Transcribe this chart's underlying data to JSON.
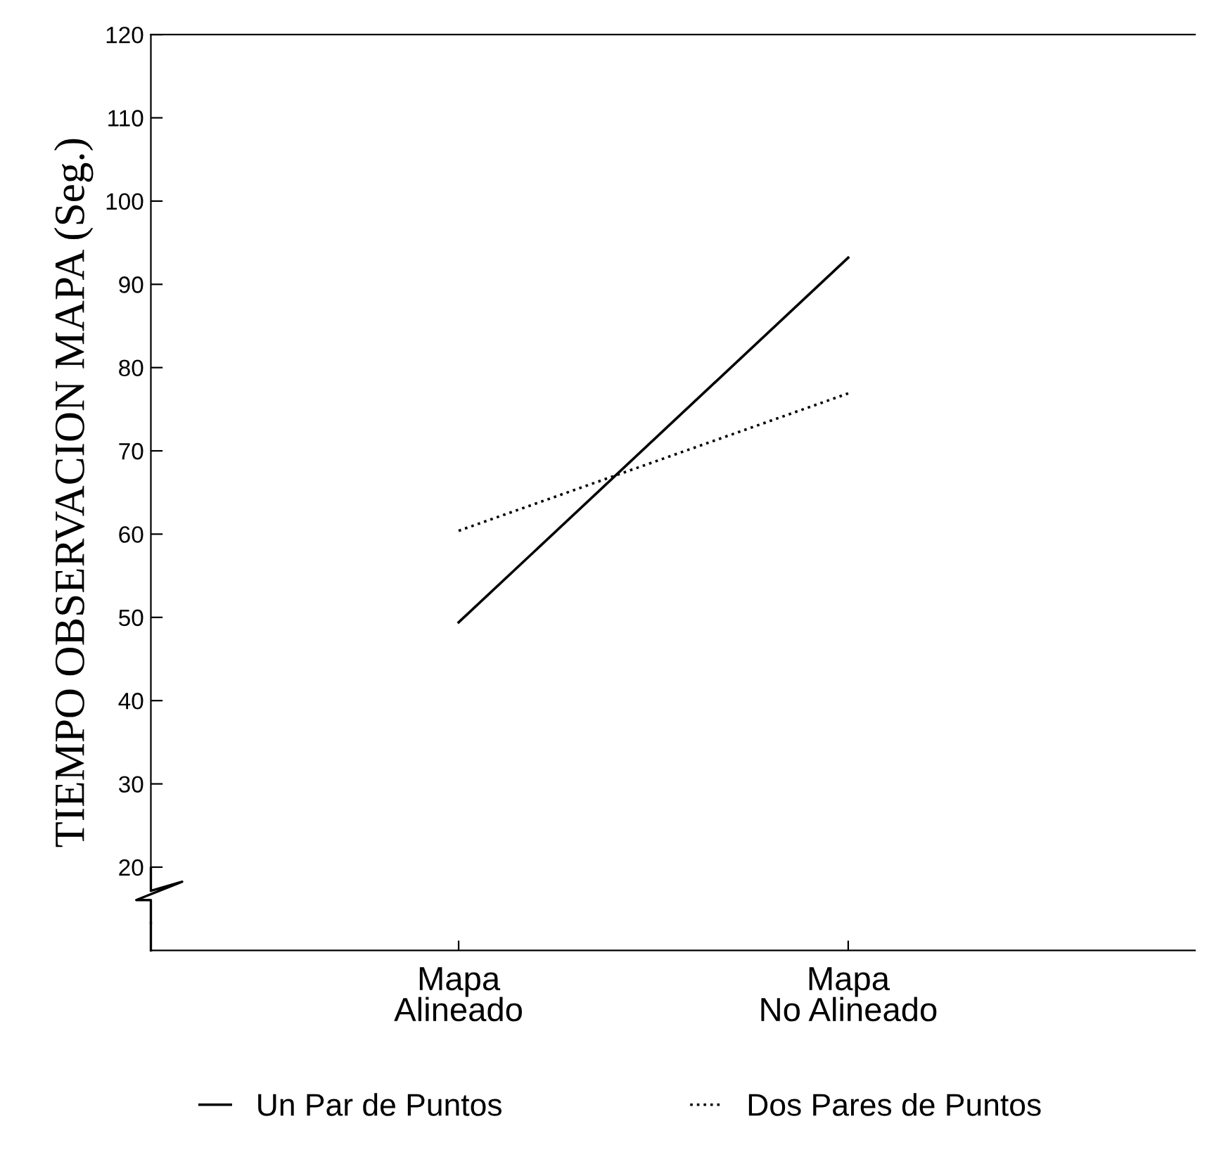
{
  "chart_data": {
    "type": "line",
    "ylabel": "TIEMPO OBSERVACION MAPA (Seg.)",
    "categories": [
      "Mapa\nAlineado",
      "Mapa\nNo Alineado"
    ],
    "series": [
      {
        "name": "Un Par de Puntos",
        "color": "#000000",
        "values": [
          49.4,
          93.2
        ],
        "line_style": "solid"
      },
      {
        "name": "Dos Pares de Puntos",
        "color": "#000000",
        "values": [
          60.4,
          76.9
        ],
        "line_style": "dotted"
      }
    ],
    "ylim": [
      10,
      120
    ],
    "yticks": [
      20,
      30,
      40,
      50,
      60,
      70,
      80,
      90,
      100,
      110,
      120
    ],
    "grid": false,
    "legend": "bottom",
    "marker": "none"
  }
}
